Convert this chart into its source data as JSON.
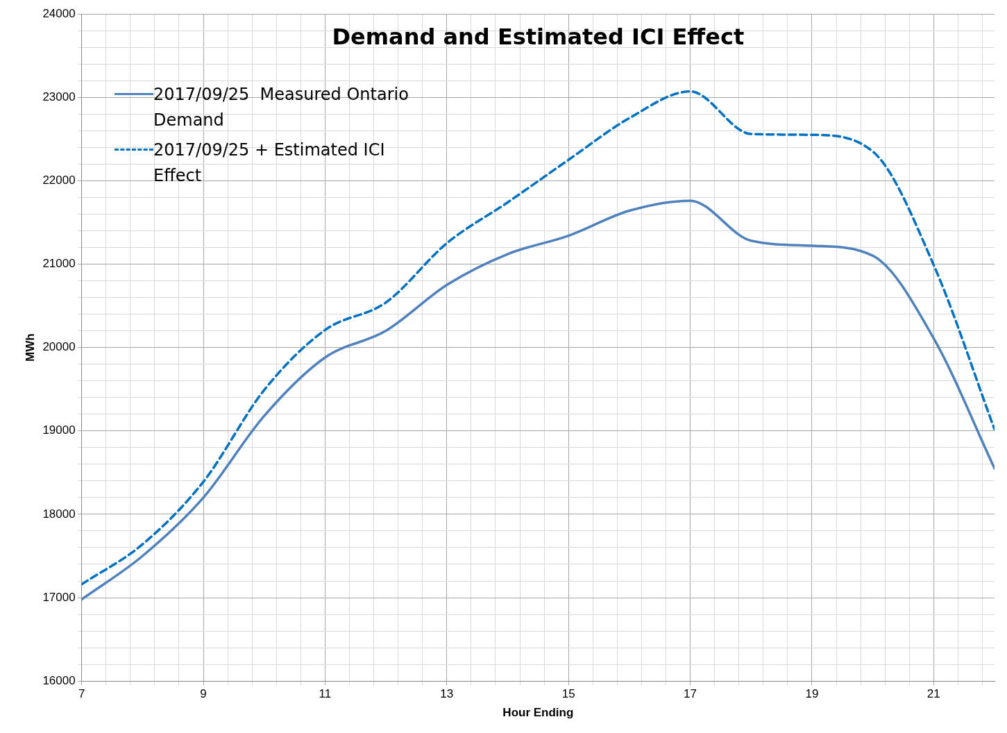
{
  "chart_data": {
    "type": "line",
    "title": "Demand and Estimated ICI Effect",
    "xlabel": "Hour Ending",
    "ylabel": "MWh",
    "x": [
      7,
      8,
      9,
      10,
      11,
      12,
      13,
      14,
      15,
      16,
      17,
      18,
      19,
      20,
      21,
      22
    ],
    "series": [
      {
        "name": "2017/09/25  Measured Ontario Demand",
        "color": "#4f81bd",
        "line_style": "solid",
        "values": [
          16980,
          17500,
          18200,
          19180,
          19880,
          20200,
          20750,
          21120,
          21340,
          21640,
          21760,
          21280,
          21220,
          21100,
          20110,
          18550
        ]
      },
      {
        "name": "2017/09/25 + Estimated ICI Effect",
        "color": "#0070c0",
        "line_style": "dashed",
        "values": [
          17160,
          17640,
          18390,
          19490,
          20210,
          20540,
          21250,
          21740,
          22250,
          22750,
          23070,
          22560,
          22550,
          22350,
          20990,
          19020
        ]
      }
    ],
    "xlim": [
      7,
      22
    ],
    "xticks": [
      7,
      {
        "value": 7.4,
        "label": null
      },
      {
        "value": 7.8,
        "label": null
      },
      {
        "value": 8.2,
        "label": null
      },
      {
        "value": 8.6,
        "label": null
      },
      9,
      {
        "value": 9.4,
        "label": null
      },
      {
        "value": 9.8,
        "label": null
      },
      {
        "value": 10.2,
        "label": null
      },
      {
        "value": 10.6,
        "label": null
      },
      11,
      {
        "value": 11.4,
        "label": null
      },
      {
        "value": 11.8,
        "label": null
      },
      {
        "value": 12.2,
        "label": null
      },
      {
        "value": 12.6,
        "label": null
      },
      13,
      {
        "value": 13.4,
        "label": null
      },
      {
        "value": 13.8,
        "label": null
      },
      {
        "value": 14.2,
        "label": null
      },
      {
        "value": 14.6,
        "label": null
      },
      15,
      {
        "value": 15.4,
        "label": null
      },
      {
        "value": 15.8,
        "label": null
      },
      {
        "value": 16.2,
        "label": null
      },
      {
        "value": 16.6,
        "label": null
      },
      17,
      {
        "value": 17.4,
        "label": null
      },
      {
        "value": 17.8,
        "label": null
      },
      {
        "value": 18.2,
        "label": null
      },
      {
        "value": 18.6,
        "label": null
      },
      19,
      {
        "value": 19.4,
        "label": null
      },
      {
        "value": 19.8,
        "label": null
      },
      {
        "value": 20.2,
        "label": null
      },
      {
        "value": 20.6,
        "label": null
      },
      21,
      {
        "value": 21.4,
        "label": null
      },
      {
        "value": 21.8,
        "label": null
      }
    ],
    "ylim": [
      16000,
      24000
    ],
    "yticks": [
      16000,
      {
        "value": 16200,
        "label": null
      },
      {
        "value": 16400,
        "label": null
      },
      {
        "value": 16600,
        "label": null
      },
      {
        "value": 16800,
        "label": null
      },
      17000,
      {
        "value": 17200,
        "label": null
      },
      {
        "value": 17400,
        "label": null
      },
      {
        "value": 17600,
        "label": null
      },
      {
        "value": 17800,
        "label": null
      },
      18000,
      {
        "value": 18200,
        "label": null
      },
      {
        "value": 18400,
        "label": null
      },
      {
        "value": 18600,
        "label": null
      },
      {
        "value": 18800,
        "label": null
      },
      19000,
      {
        "value": 19200,
        "label": null
      },
      {
        "value": 19400,
        "label": null
      },
      {
        "value": 19600,
        "label": null
      },
      {
        "value": 19800,
        "label": null
      },
      20000,
      {
        "value": 20200,
        "label": null
      },
      {
        "value": 20400,
        "label": null
      },
      {
        "value": 20600,
        "label": null
      },
      {
        "value": 20800,
        "label": null
      },
      21000,
      {
        "value": 21200,
        "label": null
      },
      {
        "value": 21400,
        "label": null
      },
      {
        "value": 21600,
        "label": null
      },
      {
        "value": 21800,
        "label": null
      },
      22000,
      {
        "value": 22200,
        "label": null
      },
      {
        "value": 22400,
        "label": null
      },
      {
        "value": 22600,
        "label": null
      },
      {
        "value": 22800,
        "label": null
      },
      23000,
      {
        "value": 23200,
        "label": null
      },
      {
        "value": 23400,
        "label": null
      },
      {
        "value": 23600,
        "label": null
      },
      {
        "value": 23800,
        "label": null
      },
      24000
    ],
    "grid": true,
    "legend": "top left",
    "marker": "none"
  }
}
